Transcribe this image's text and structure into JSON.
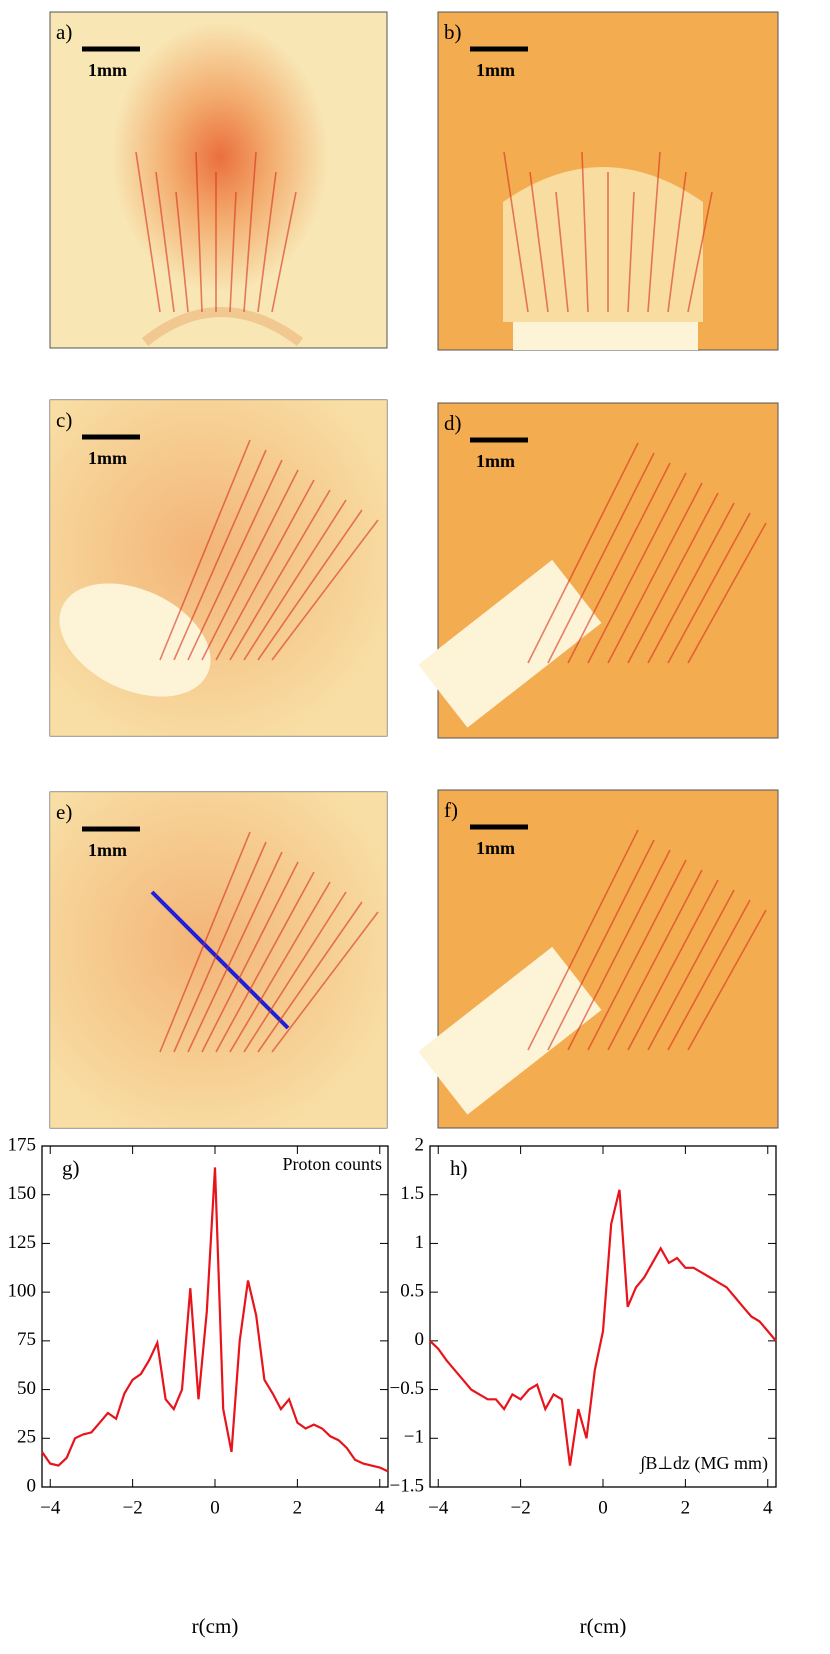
{
  "panels": [
    {
      "label": "a)",
      "scale": "1mm"
    },
    {
      "label": "b)",
      "scale": "1mm"
    },
    {
      "label": "c)",
      "scale": "1mm"
    },
    {
      "label": "d)",
      "scale": "1mm"
    },
    {
      "label": "e)",
      "scale": "1mm"
    },
    {
      "label": "f)",
      "scale": "1mm"
    }
  ],
  "chart_data": [
    {
      "type": "line",
      "label": "g)",
      "annotation": "Proton counts",
      "xlabel": "r(cm)",
      "x": [
        -4.2,
        -4,
        -3.8,
        -3.6,
        -3.4,
        -3.2,
        -3,
        -2.8,
        -2.6,
        -2.4,
        -2.2,
        -2,
        -1.8,
        -1.6,
        -1.4,
        -1.2,
        -1,
        -0.8,
        -0.6,
        -0.4,
        -0.2,
        0,
        0.2,
        0.4,
        0.6,
        0.8,
        1,
        1.2,
        1.4,
        1.6,
        1.8,
        2,
        2.2,
        2.4,
        2.6,
        2.8,
        3,
        3.2,
        3.4,
        3.6,
        3.8,
        4,
        4.2
      ],
      "series": [
        {
          "color": "#e8141c",
          "values": [
            18,
            12,
            11,
            15,
            25,
            27,
            28,
            33,
            38,
            35,
            48,
            55,
            58,
            65,
            74,
            45,
            40,
            50,
            102,
            45,
            90,
            164,
            40,
            18,
            75,
            106,
            88,
            55,
            48,
            40,
            45,
            33,
            30,
            32,
            30,
            26,
            24,
            20,
            14,
            12,
            11,
            10,
            8
          ]
        }
      ],
      "xlim": [
        -4.2,
        4.2
      ],
      "ylim": [
        0,
        175
      ],
      "xticks": [
        {
          "value": -4,
          "label": "−4"
        },
        {
          "value": -2,
          "label": "−2"
        },
        0,
        2,
        4
      ],
      "yticks": [
        0,
        25,
        50,
        75,
        100,
        125,
        150,
        175
      ]
    },
    {
      "type": "line",
      "label": "h)",
      "annotation": "∫B⊥dz (MG mm)",
      "xlabel": "r(cm)",
      "x": [
        -4.2,
        -4,
        -3.8,
        -3.6,
        -3.4,
        -3.2,
        -3,
        -2.8,
        -2.6,
        -2.4,
        -2.2,
        -2,
        -1.8,
        -1.6,
        -1.4,
        -1.2,
        -1,
        -0.8,
        -0.6,
        -0.4,
        -0.2,
        0,
        0.2,
        0.4,
        0.6,
        0.8,
        1,
        1.2,
        1.4,
        1.6,
        1.8,
        2,
        2.2,
        2.4,
        2.6,
        2.8,
        3,
        3.2,
        3.4,
        3.6,
        3.8,
        4,
        4.2
      ],
      "series": [
        {
          "color": "#e8141c",
          "values": [
            0,
            -0.08,
            -0.2,
            -0.3,
            -0.4,
            -0.5,
            -0.55,
            -0.6,
            -0.6,
            -0.7,
            -0.55,
            -0.6,
            -0.5,
            -0.45,
            -0.7,
            -0.55,
            -0.6,
            -1.28,
            -0.7,
            -1.0,
            -0.3,
            0.1,
            1.2,
            1.55,
            0.35,
            0.55,
            0.65,
            0.8,
            0.95,
            0.8,
            0.85,
            0.75,
            0.75,
            0.7,
            0.65,
            0.6,
            0.55,
            0.45,
            0.35,
            0.25,
            0.2,
            0.1,
            0
          ]
        }
      ],
      "xlim": [
        -4.2,
        4.2
      ],
      "ylim": [
        -1.5,
        2
      ],
      "xticks": [
        {
          "value": -4,
          "label": "−4"
        },
        {
          "value": -2,
          "label": "−2"
        },
        0,
        2,
        4
      ],
      "yticks": [
        {
          "value": -1.5,
          "label": "−1.5"
        },
        {
          "value": -1,
          "label": "−1"
        },
        {
          "value": -0.5,
          "label": "−0.5"
        },
        0,
        0.5,
        1,
        1.5,
        2
      ]
    }
  ]
}
